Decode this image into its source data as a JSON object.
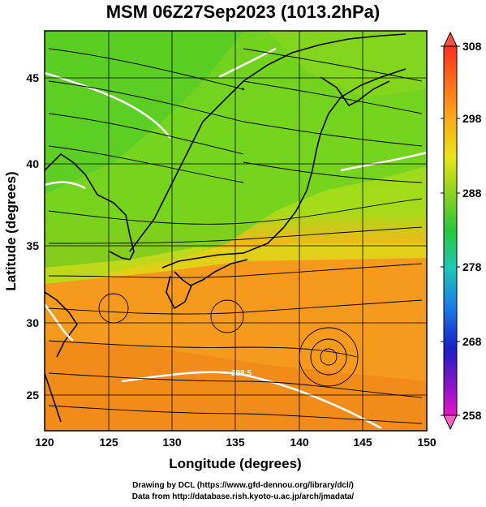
{
  "title": "MSM 06Z27Sep2023 (1013.2hPa)",
  "x_axis": {
    "title": "Longitude (degrees)",
    "ticks": [
      "120",
      "125",
      "130",
      "135",
      "140",
      "145",
      "150"
    ]
  },
  "y_axis": {
    "title": "Latitude  (degrees)",
    "ticks": [
      "45",
      "40",
      "35",
      "30",
      "25"
    ]
  },
  "colorbar": {
    "ticks": [
      "308",
      "298",
      "288",
      "278",
      "268",
      "258"
    ],
    "colors": [
      "#e8004c",
      "#ff3a1e",
      "#ff8c1a",
      "#ffc21a",
      "#e6e619",
      "#a8e619",
      "#3cd21e",
      "#1ebe5a",
      "#1ec8b4",
      "#1aa0e6",
      "#1a5ae6",
      "#1a14c8",
      "#8c14c8",
      "#e614c8"
    ]
  },
  "contour_label": "298.5",
  "credits": {
    "line1": "Drawing by DCL (https://www.gfd-dennou.org/library/dcl/)",
    "line2": "Data from http://database.rish.kyoto-u.ac.jp/arch/jmadata/"
  }
}
